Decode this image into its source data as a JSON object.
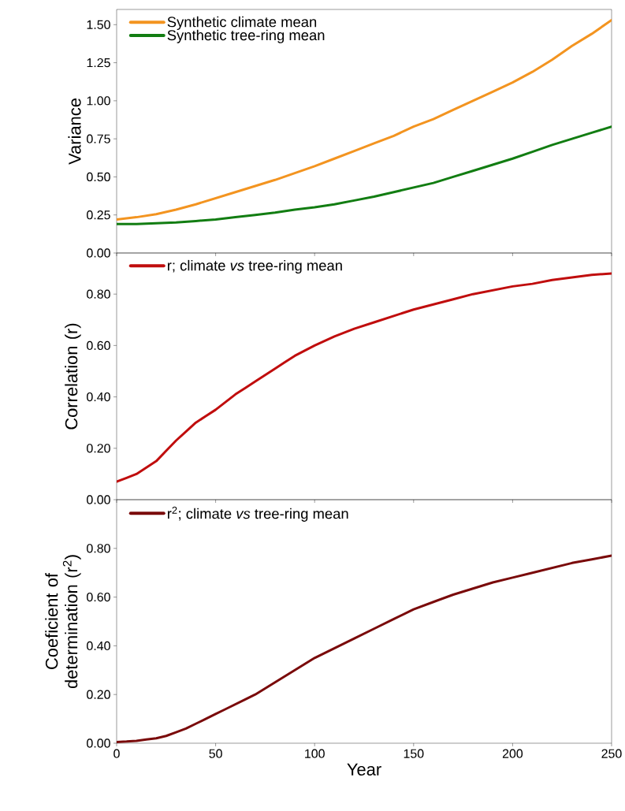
{
  "chart_data": [
    {
      "type": "line",
      "ylabel": "Variance",
      "x": [
        0,
        10,
        20,
        30,
        40,
        50,
        60,
        70,
        80,
        90,
        100,
        110,
        120,
        130,
        140,
        150,
        160,
        170,
        180,
        190,
        200,
        210,
        220,
        230,
        240,
        250
      ],
      "series": [
        {
          "name": "Synthetic climate mean",
          "color": "#f39420",
          "values": [
            0.22,
            0.235,
            0.255,
            0.285,
            0.32,
            0.36,
            0.4,
            0.44,
            0.48,
            0.525,
            0.57,
            0.62,
            0.67,
            0.72,
            0.77,
            0.83,
            0.88,
            0.94,
            1.0,
            1.06,
            1.12,
            1.19,
            1.27,
            1.36,
            1.44,
            1.53
          ]
        },
        {
          "name": "Synthetic tree-ring mean",
          "color": "#127d12",
          "values": [
            0.19,
            0.19,
            0.195,
            0.2,
            0.21,
            0.22,
            0.235,
            0.25,
            0.265,
            0.285,
            0.3,
            0.32,
            0.345,
            0.37,
            0.4,
            0.43,
            0.46,
            0.5,
            0.54,
            0.58,
            0.62,
            0.665,
            0.71,
            0.75,
            0.79,
            0.83
          ]
        }
      ],
      "xlim": [
        0,
        250
      ],
      "xticks": [
        0,
        50,
        100,
        150,
        200,
        250
      ],
      "ylim": [
        0,
        1.6
      ],
      "yticks": [
        {
          "value": 0,
          "label": "0.00"
        },
        {
          "value": 0.25,
          "label": "0.25"
        },
        {
          "value": 0.5,
          "label": "0.50"
        },
        {
          "value": 0.75,
          "label": "0.75"
        },
        {
          "value": 1,
          "label": "1.00"
        },
        {
          "value": 1.25,
          "label": "1.25"
        },
        {
          "value": 1.5,
          "label": "1.50"
        }
      ],
      "legend": "top left",
      "tick_labels": "y"
    },
    {
      "type": "line",
      "ylabel": "Correlation (r)",
      "x": [
        0,
        5,
        10,
        15,
        20,
        25,
        30,
        35,
        40,
        45,
        50,
        55,
        60,
        65,
        70,
        75,
        80,
        85,
        90,
        95,
        100,
        110,
        120,
        130,
        140,
        150,
        160,
        170,
        180,
        190,
        200,
        210,
        220,
        230,
        240,
        250
      ],
      "series": [
        {
          "name": "r; climate *vs* tree-ring mean",
          "color": "#c00d0d",
          "values": [
            0.07,
            0.085,
            0.1,
            0.125,
            0.15,
            0.19,
            0.23,
            0.265,
            0.3,
            0.325,
            0.35,
            0.38,
            0.41,
            0.435,
            0.46,
            0.485,
            0.51,
            0.535,
            0.56,
            0.58,
            0.6,
            0.635,
            0.665,
            0.69,
            0.715,
            0.74,
            0.76,
            0.78,
            0.8,
            0.815,
            0.83,
            0.84,
            0.855,
            0.865,
            0.875,
            0.88
          ]
        }
      ],
      "xlim": [
        0,
        250
      ],
      "xticks": [
        0,
        50,
        100,
        150,
        200,
        250
      ],
      "ylim": [
        0,
        0.96
      ],
      "yticks": [
        {
          "value": 0,
          "label": "0.00"
        },
        {
          "value": 0.2,
          "label": "0.20"
        },
        {
          "value": 0.4,
          "label": "0.40"
        },
        {
          "value": 0.6,
          "label": "0.60"
        },
        {
          "value": 0.8,
          "label": "0.80"
        }
      ],
      "legend": "top left",
      "tick_labels": "y"
    },
    {
      "type": "line",
      "ylabel": "Coeficient of determination (r$^{2}$)",
      "xlabel": "Year",
      "x": [
        0,
        5,
        10,
        15,
        20,
        25,
        30,
        35,
        40,
        45,
        50,
        55,
        60,
        65,
        70,
        75,
        80,
        85,
        90,
        95,
        100,
        110,
        120,
        130,
        140,
        150,
        160,
        170,
        180,
        190,
        200,
        210,
        220,
        230,
        240,
        250
      ],
      "series": [
        {
          "name": "r$^{2}$; climate *vs* tree-ring mean",
          "color": "#7a0a0a",
          "values": [
            0.005,
            0.007,
            0.01,
            0.015,
            0.02,
            0.03,
            0.045,
            0.06,
            0.08,
            0.1,
            0.12,
            0.14,
            0.16,
            0.18,
            0.2,
            0.225,
            0.25,
            0.275,
            0.3,
            0.325,
            0.35,
            0.39,
            0.43,
            0.47,
            0.51,
            0.55,
            0.58,
            0.61,
            0.635,
            0.66,
            0.68,
            0.7,
            0.72,
            0.74,
            0.755,
            0.77
          ]
        }
      ],
      "xlim": [
        0,
        250
      ],
      "xticks": [
        0,
        50,
        100,
        150,
        200,
        250
      ],
      "ylim": [
        0,
        1.0
      ],
      "yticks": [
        {
          "value": 0,
          "label": "0.00"
        },
        {
          "value": 0.2,
          "label": "0.20"
        },
        {
          "value": 0.4,
          "label": "0.40"
        },
        {
          "value": 0.6,
          "label": "0.60"
        },
        {
          "value": 0.8,
          "label": "0.80"
        }
      ],
      "legend": "top left"
    }
  ]
}
